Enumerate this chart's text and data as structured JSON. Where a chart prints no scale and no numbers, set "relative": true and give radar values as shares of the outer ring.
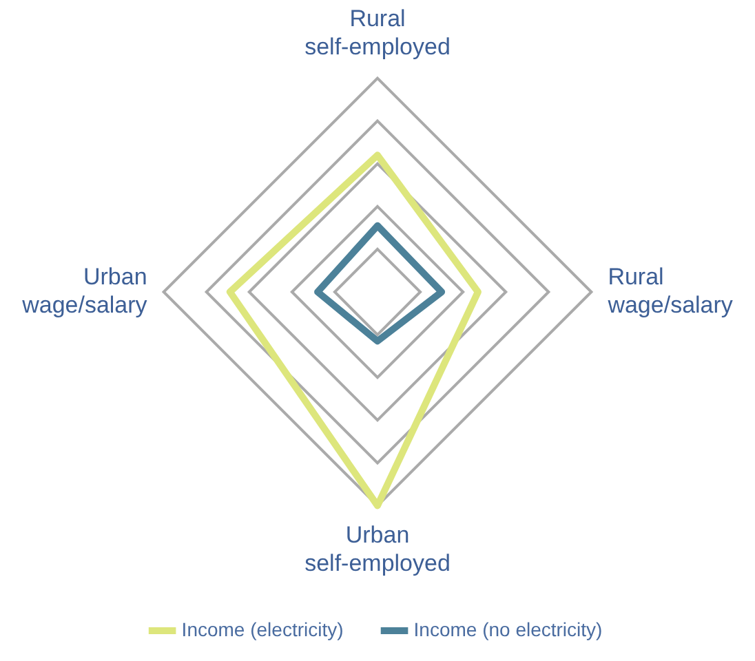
{
  "chart_data": {
    "type": "radar",
    "relative": true,
    "categories": [
      "Rural self-employed",
      "Rural wage/salary",
      "Urban self-employed",
      "Urban wage/salary"
    ],
    "series": [
      {
        "name": "Income (electricity)",
        "color": "#dde67c",
        "values": [
          0.64,
          0.47,
          1.0,
          0.69
        ]
      },
      {
        "name": "Income (no electricity)",
        "color": "#4c8199",
        "values": [
          0.31,
          0.3,
          0.23,
          0.28
        ]
      }
    ],
    "grid": true,
    "legend": "bottom",
    "marker": "none"
  }
}
